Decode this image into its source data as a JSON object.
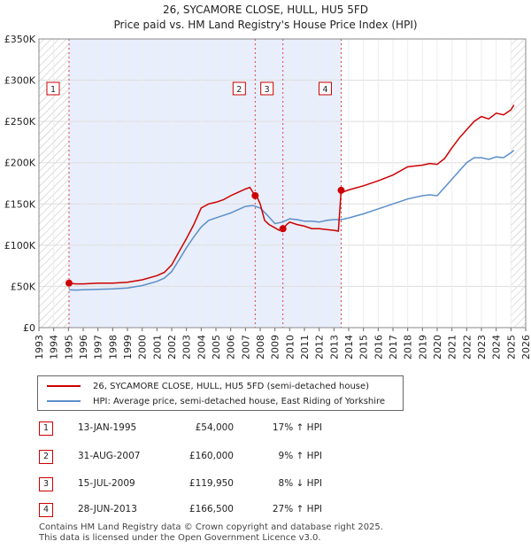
{
  "title": "26, SYCAMORE CLOSE, HULL, HU5 5FD",
  "subtitle": "Price paid vs. HM Land Registry's House Price Index (HPI)",
  "colors": {
    "property": "#cc0000",
    "hpi": "#5b8fc9",
    "shade": "#e8eefb",
    "hatch": "#bbbbbb"
  },
  "legend": {
    "property_label": "26, SYCAMORE CLOSE, HULL, HU5 5FD (semi-detached house)",
    "hpi_label": "HPI: Average price, semi-detached house, East Riding of Yorkshire"
  },
  "transactions": [
    {
      "num": "1",
      "date": "13-JAN-1995",
      "price": "£54,000",
      "hpi": "17% ↑ HPI"
    },
    {
      "num": "2",
      "date": "31-AUG-2007",
      "price": "£160,000",
      "hpi": "9% ↑ HPI"
    },
    {
      "num": "3",
      "date": "15-JUL-2009",
      "price": "£119,950",
      "hpi": "8% ↓ HPI"
    },
    {
      "num": "4",
      "date": "28-JUN-2013",
      "price": "£166,500",
      "hpi": "27% ↑ HPI"
    }
  ],
  "footer": {
    "line1": "Contains HM Land Registry data © Crown copyright and database right 2025.",
    "line2": "This data is licensed under the Open Government Licence v3.0."
  },
  "chart_data": {
    "type": "line",
    "xlim": [
      1993,
      2026
    ],
    "ylim": [
      0,
      350000
    ],
    "ytick_values": [
      0,
      50000,
      100000,
      150000,
      200000,
      250000,
      300000,
      350000
    ],
    "ytick_labels": [
      "£0",
      "£50K",
      "£100K",
      "£150K",
      "£200K",
      "£250K",
      "£300K",
      "£350K"
    ],
    "xtick_labels": [
      "1993",
      "1994",
      "1995",
      "1996",
      "1997",
      "1998",
      "1999",
      "2000",
      "2001",
      "2002",
      "2003",
      "2004",
      "2005",
      "2006",
      "2007",
      "2008",
      "2009",
      "2010",
      "2011",
      "2012",
      "2013",
      "2014",
      "2015",
      "2016",
      "2017",
      "2018",
      "2019",
      "2020",
      "2021",
      "2022",
      "2023",
      "2024",
      "2025",
      "2026"
    ],
    "hatch_ranges": [
      [
        1993,
        1995.0
      ],
      [
        2025.0,
        2026
      ]
    ],
    "shaded_range": [
      1995.04,
      2013.49
    ],
    "series": [
      {
        "name": "26, SYCAMORE CLOSE, HULL, HU5 5FD (semi-detached house)",
        "x": [
          1995.04,
          1995.5,
          1996,
          1997,
          1998,
          1999,
          2000,
          2001,
          2001.5,
          2002,
          2002.5,
          2003,
          2003.5,
          2004,
          2004.5,
          2005,
          2005.5,
          2006,
          2006.5,
          2007,
          2007.3,
          2007.66,
          2007.8,
          2008,
          2008.3,
          2008.6,
          2009,
          2009.3,
          2009.54,
          2009.8,
          2010,
          2010.5,
          2011,
          2011.5,
          2012,
          2012.5,
          2013,
          2013.3,
          2013.49,
          2013.7,
          2014,
          2015,
          2016,
          2017,
          2018,
          2019,
          2019.5,
          2020,
          2020.5,
          2021,
          2021.5,
          2022,
          2022.5,
          2023,
          2023.5,
          2024,
          2024.5,
          2025,
          2025.2
        ],
        "values": [
          54000,
          53000,
          53000,
          54000,
          54000,
          55000,
          58000,
          63000,
          67000,
          76000,
          92000,
          108000,
          125000,
          145000,
          150000,
          152000,
          155000,
          160000,
          164000,
          168000,
          170000,
          160000,
          158000,
          150000,
          130000,
          125000,
          121000,
          118000,
          119950,
          125000,
          128000,
          125000,
          123000,
          120000,
          120000,
          119000,
          118000,
          117000,
          166500,
          165000,
          167000,
          172000,
          178000,
          185000,
          195000,
          197000,
          199000,
          198000,
          205000,
          218000,
          230000,
          240000,
          250000,
          256000,
          253000,
          260000,
          258000,
          264000,
          270000
        ]
      },
      {
        "name": "HPI: Average price, semi-detached house, East Riding of Yorkshire",
        "x": [
          1995.04,
          1995.5,
          1996,
          1997,
          1998,
          1999,
          2000,
          2001,
          2001.5,
          2002,
          2002.5,
          2003,
          2003.5,
          2004,
          2004.5,
          2005,
          2005.5,
          2006,
          2006.5,
          2007,
          2007.5,
          2008,
          2008.5,
          2009,
          2009.5,
          2010,
          2010.5,
          2011,
          2011.5,
          2012,
          2012.5,
          2013,
          2013.5,
          2014,
          2015,
          2016,
          2017,
          2018,
          2019,
          2019.5,
          2020,
          2020.5,
          2021,
          2021.5,
          2022,
          2022.5,
          2023,
          2023.5,
          2024,
          2024.5,
          2025,
          2025.2
        ],
        "values": [
          46000,
          45500,
          46000,
          46500,
          47000,
          48000,
          51000,
          56000,
          60000,
          68000,
          82000,
          97000,
          110000,
          122000,
          130000,
          133000,
          136000,
          139000,
          143000,
          147000,
          148000,
          145000,
          136000,
          126000,
          128000,
          132000,
          131000,
          129000,
          129000,
          128000,
          130000,
          131000,
          131000,
          133000,
          138000,
          144000,
          150000,
          156000,
          160000,
          161000,
          160000,
          170000,
          180000,
          190000,
          200000,
          206000,
          206000,
          204000,
          207000,
          206000,
          212000,
          215000
        ]
      }
    ],
    "sale_points": [
      {
        "label": "1",
        "x": 1995.04,
        "y": 54000
      },
      {
        "label": "2",
        "x": 2007.66,
        "y": 160000
      },
      {
        "label": "3",
        "x": 2009.54,
        "y": 119950
      },
      {
        "label": "4",
        "x": 2013.49,
        "y": 166500
      }
    ]
  }
}
